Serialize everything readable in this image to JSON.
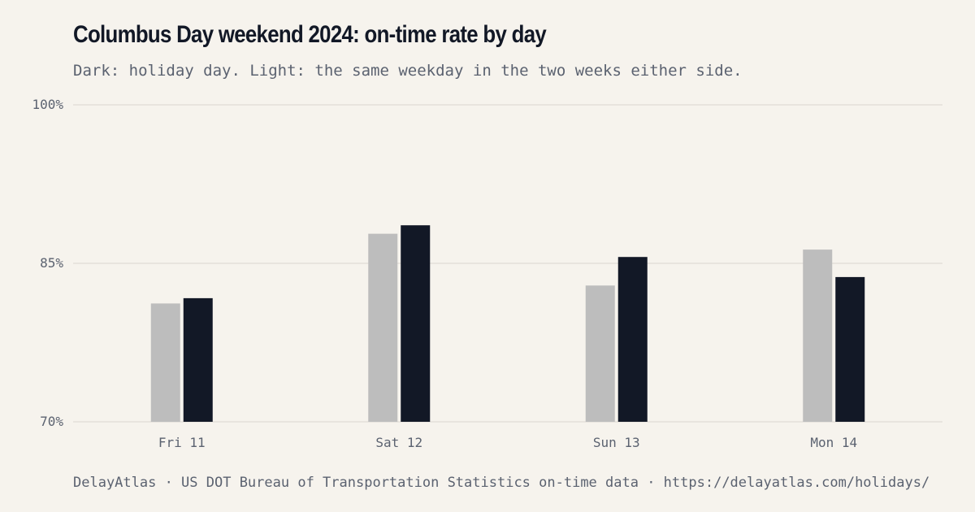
{
  "chart_data": {
    "type": "bar",
    "title": "Columbus Day weekend 2024: on-time rate by day",
    "subtitle": "Dark: holiday day. Light: the same weekday in the two weeks either side.",
    "categories": [
      "Fri 11",
      "Sat 12",
      "Sun 13",
      "Mon 14"
    ],
    "series": [
      {
        "key": "comparison",
        "values": [
          81.2,
          87.8,
          82.9,
          86.3
        ],
        "color": "#bdbdbd"
      },
      {
        "key": "holiday",
        "values": [
          81.7,
          88.6,
          85.6,
          83.7
        ],
        "color": "#121826"
      }
    ],
    "ylim": [
      70,
      100
    ],
    "yticks": [
      100,
      85,
      70
    ],
    "ytick_labels": [
      "100%",
      "85%",
      "70%"
    ],
    "grid": true,
    "legend": "none",
    "source": "DelayAtlas · US DOT Bureau of Transportation Statistics on-time data · https://delayatlas.com/holidays/"
  }
}
